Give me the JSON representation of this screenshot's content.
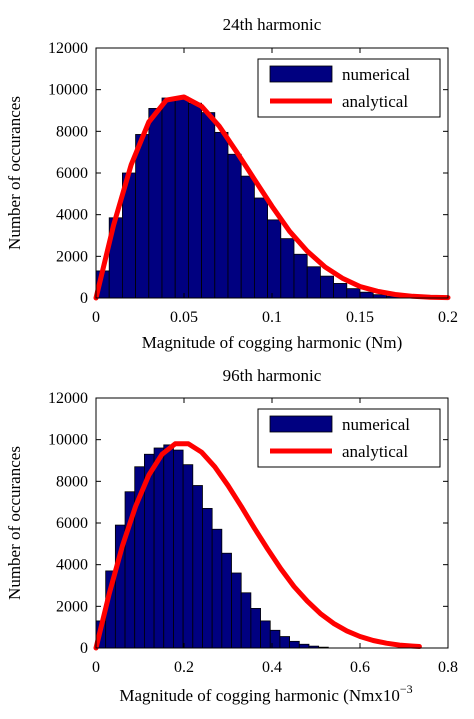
{
  "chart_data": [
    {
      "type": "bar",
      "title": "24th harmonic",
      "xlabel": "Magnitude of cogging harmonic (Nm)",
      "xlabel_suffix": "",
      "ylabel": "Number of occurances",
      "xlim": [
        0,
        0.2
      ],
      "ylim": [
        0,
        12000
      ],
      "xticks": [
        0,
        0.05,
        0.1,
        0.15,
        0.2
      ],
      "xtick_labels": [
        "0",
        "0.05",
        "0.1",
        "0.15",
        "0.2"
      ],
      "yticks": [
        0,
        2000,
        4000,
        6000,
        8000,
        10000,
        12000
      ],
      "ytick_labels": [
        "0",
        "2000",
        "4000",
        "6000",
        "8000",
        "10000",
        "12000"
      ],
      "grid": false,
      "legend_position": "top-right",
      "legend": [
        "numerical",
        "analytical"
      ],
      "colors": {
        "bars": "#000080",
        "curve": "#ff0000"
      },
      "bin_width": 0.0075,
      "bin_centers": [
        0.00375,
        0.01125,
        0.01875,
        0.02625,
        0.03375,
        0.04125,
        0.04875,
        0.05625,
        0.06375,
        0.07125,
        0.07875,
        0.08625,
        0.09375,
        0.10125,
        0.10875,
        0.11625,
        0.12375,
        0.13125,
        0.13875,
        0.14625,
        0.15375,
        0.16125,
        0.16875
      ],
      "counts": [
        1300,
        3850,
        6000,
        7850,
        9100,
        9600,
        9650,
        9350,
        8900,
        7950,
        6900,
        5850,
        4800,
        3750,
        2850,
        2100,
        1500,
        1050,
        700,
        450,
        280,
        160,
        90
      ],
      "curve": {
        "name": "analytical",
        "x": [
          0,
          0.01,
          0.02,
          0.03,
          0.04,
          0.05,
          0.06,
          0.07,
          0.08,
          0.09,
          0.1,
          0.11,
          0.12,
          0.13,
          0.14,
          0.15,
          0.16,
          0.17,
          0.18,
          0.19,
          0.2
        ],
        "y": [
          0,
          3500,
          6400,
          8450,
          9500,
          9650,
          9200,
          8250,
          7000,
          5700,
          4400,
          3200,
          2250,
          1500,
          950,
          550,
          320,
          170,
          80,
          40,
          20
        ]
      }
    },
    {
      "type": "bar",
      "title": "96th harmonic",
      "xlabel": "Magnitude of cogging harmonic (Nmx10",
      "xlabel_suffix": "−3",
      "ylabel": "Number of occurances",
      "xlim": [
        0,
        0.8
      ],
      "ylim": [
        0,
        12000
      ],
      "xticks": [
        0,
        0.2,
        0.4,
        0.6,
        0.8
      ],
      "xtick_labels": [
        "0",
        "0.2",
        "0.4",
        "0.6",
        "0.8"
      ],
      "yticks": [
        0,
        2000,
        4000,
        6000,
        8000,
        10000,
        12000
      ],
      "ytick_labels": [
        "0",
        "2000",
        "4000",
        "6000",
        "8000",
        "10000",
        "12000"
      ],
      "grid": false,
      "legend_position": "top-right",
      "legend": [
        "numerical",
        "analytical"
      ],
      "colors": {
        "bars": "#000080",
        "curve": "#ff0000"
      },
      "bin_width": 0.022,
      "bin_centers": [
        0.011,
        0.033,
        0.055,
        0.077,
        0.099,
        0.121,
        0.143,
        0.165,
        0.187,
        0.209,
        0.231,
        0.253,
        0.275,
        0.297,
        0.319,
        0.341,
        0.363,
        0.385,
        0.407,
        0.429,
        0.451,
        0.473,
        0.495,
        0.517
      ],
      "counts": [
        1300,
        3700,
        5900,
        7500,
        8700,
        9300,
        9600,
        9750,
        9500,
        8800,
        7800,
        6700,
        5700,
        4550,
        3600,
        2650,
        1900,
        1300,
        850,
        550,
        320,
        180,
        90,
        40
      ],
      "curve": {
        "name": "analytical",
        "x": [
          0,
          0.03,
          0.06,
          0.09,
          0.12,
          0.15,
          0.18,
          0.21,
          0.24,
          0.27,
          0.3,
          0.33,
          0.36,
          0.39,
          0.42,
          0.45,
          0.48,
          0.51,
          0.54,
          0.57,
          0.6,
          0.63,
          0.66,
          0.69,
          0.72,
          0.735
        ],
        "y": [
          0,
          2600,
          4900,
          6800,
          8300,
          9300,
          9800,
          9800,
          9400,
          8700,
          7800,
          6800,
          5750,
          4750,
          3800,
          2950,
          2250,
          1650,
          1180,
          820,
          550,
          360,
          230,
          140,
          90,
          70
        ]
      }
    }
  ]
}
